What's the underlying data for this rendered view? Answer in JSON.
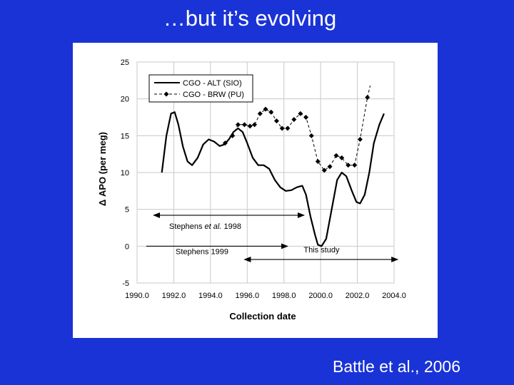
{
  "slide": {
    "title": "…but it’s evolving",
    "citation": "Battle et al., 2006"
  },
  "colors": {
    "background": "#1a33d6",
    "panel": "#ffffff",
    "ink": "#000000"
  },
  "chart_data": {
    "type": "line",
    "xlabel": "Collection date",
    "ylabel": "Δ APO (per meg)",
    "xlim": [
      1990,
      2004
    ],
    "ylim": [
      -5,
      25
    ],
    "x_ticks": [
      "1990.0",
      "1992.0",
      "1994.0",
      "1996.0",
      "1998.0",
      "2000.0",
      "2002.0",
      "2004.0"
    ],
    "y_ticks": [
      "-5",
      "0",
      "5",
      "10",
      "15",
      "20",
      "25"
    ],
    "grid": true,
    "legend_position": "top-left",
    "series": [
      {
        "name": "CGO - ALT (SIO)",
        "style": "solid",
        "points": [
          [
            1991.35,
            10
          ],
          [
            1991.6,
            15
          ],
          [
            1991.85,
            18
          ],
          [
            1992.05,
            18.2
          ],
          [
            1992.25,
            16.5
          ],
          [
            1992.5,
            13.5
          ],
          [
            1992.75,
            11.5
          ],
          [
            1993.0,
            11
          ],
          [
            1993.3,
            12
          ],
          [
            1993.6,
            13.8
          ],
          [
            1993.9,
            14.5
          ],
          [
            1994.2,
            14.2
          ],
          [
            1994.5,
            13.6
          ],
          [
            1994.75,
            13.8
          ],
          [
            1995.0,
            14.5
          ],
          [
            1995.25,
            15.5
          ],
          [
            1995.5,
            16
          ],
          [
            1995.75,
            15.5
          ],
          [
            1996.0,
            14
          ],
          [
            1996.3,
            12
          ],
          [
            1996.6,
            11
          ],
          [
            1996.9,
            11
          ],
          [
            1997.2,
            10.5
          ],
          [
            1997.5,
            9
          ],
          [
            1997.8,
            8
          ],
          [
            1998.1,
            7.5
          ],
          [
            1998.4,
            7.6
          ],
          [
            1998.7,
            8
          ],
          [
            1999.0,
            8.2
          ],
          [
            1999.2,
            7
          ],
          [
            1999.45,
            4
          ],
          [
            1999.7,
            1.5
          ],
          [
            1999.85,
            0.2
          ],
          [
            2000.05,
            0
          ],
          [
            2000.3,
            1
          ],
          [
            2000.6,
            5
          ],
          [
            2000.9,
            9
          ],
          [
            2001.15,
            10
          ],
          [
            2001.4,
            9.5
          ],
          [
            2001.7,
            7.5
          ],
          [
            2001.95,
            6
          ],
          [
            2002.15,
            5.8
          ],
          [
            2002.4,
            7
          ],
          [
            2002.65,
            10
          ],
          [
            2002.9,
            14
          ],
          [
            2003.2,
            16.5
          ],
          [
            2003.45,
            18
          ]
        ]
      },
      {
        "name": "CGO - BRW (PU)",
        "style": "dashed-diamond",
        "points": [
          [
            1994.8,
            14
          ],
          [
            1995.2,
            15
          ],
          [
            1995.5,
            16.5
          ],
          [
            1995.85,
            16.5
          ],
          [
            1996.15,
            16.3
          ],
          [
            1996.4,
            16.5
          ],
          [
            1996.7,
            18
          ],
          [
            1997.0,
            18.6
          ],
          [
            1997.3,
            18.2
          ],
          [
            1997.6,
            17
          ],
          [
            1997.9,
            16
          ],
          [
            1998.2,
            16
          ],
          [
            1998.55,
            17.2
          ],
          [
            1998.9,
            18
          ],
          [
            1999.2,
            17.5
          ],
          [
            1999.5,
            15
          ],
          [
            1999.85,
            11.5
          ],
          [
            2000.2,
            10.3
          ],
          [
            2000.5,
            10.8
          ],
          [
            2000.85,
            12.3
          ],
          [
            2001.15,
            12
          ],
          [
            2001.5,
            11
          ],
          [
            2001.85,
            11
          ],
          [
            2002.15,
            14.5
          ],
          [
            2002.55,
            20.2
          ]
        ]
      }
    ],
    "annotations": [
      {
        "label_parts": [
          "Stephens ",
          "et al.",
          " 1998"
        ],
        "x_range": [
          1990.9,
          1999.1
        ],
        "y": 4.2
      },
      {
        "label": "Stephens 1999",
        "x_range": [
          1990.5,
          1998.2
        ],
        "y": 0,
        "arrow_only_end": true
      },
      {
        "label": "This study",
        "x_range": [
          1995.85,
          2004.2
        ],
        "y": -1.8
      }
    ]
  }
}
